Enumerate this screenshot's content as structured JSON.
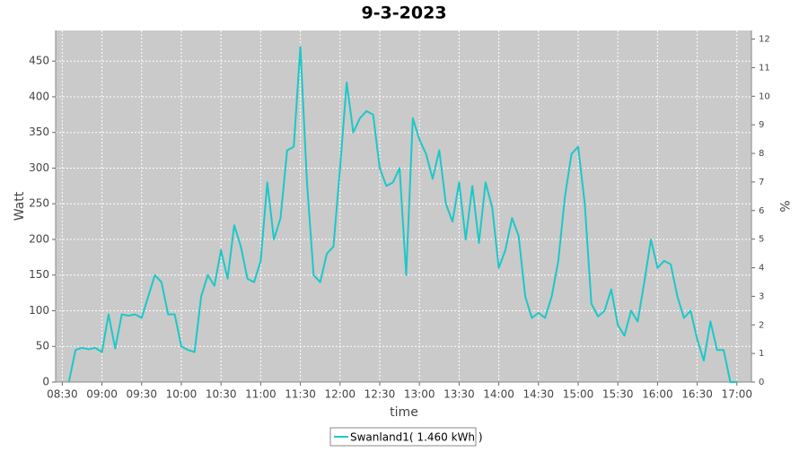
{
  "chart_data": {
    "type": "line",
    "title": "9-3-2023",
    "x_label": "time",
    "y_label": "Watt",
    "y2_label": "%",
    "x": [
      "08:35",
      "08:40",
      "08:45",
      "08:50",
      "08:55",
      "09:00",
      "09:05",
      "09:10",
      "09:15",
      "09:20",
      "09:25",
      "09:30",
      "09:35",
      "09:40",
      "09:45",
      "09:50",
      "09:55",
      "10:00",
      "10:05",
      "10:10",
      "10:15",
      "10:20",
      "10:25",
      "10:30",
      "10:35",
      "10:40",
      "10:45",
      "10:50",
      "10:55",
      "11:00",
      "11:05",
      "11:10",
      "11:15",
      "11:20",
      "11:25",
      "11:30",
      "11:35",
      "11:40",
      "11:45",
      "11:50",
      "11:55",
      "12:00",
      "12:05",
      "12:10",
      "12:15",
      "12:20",
      "12:25",
      "12:30",
      "12:35",
      "12:40",
      "12:45",
      "12:50",
      "12:55",
      "13:00",
      "13:05",
      "13:10",
      "13:15",
      "13:20",
      "13:25",
      "13:30",
      "13:35",
      "13:40",
      "13:45",
      "13:50",
      "13:55",
      "14:00",
      "14:05",
      "14:10",
      "14:15",
      "14:20",
      "14:25",
      "14:30",
      "14:35",
      "14:40",
      "14:45",
      "14:50",
      "14:55",
      "15:00",
      "15:05",
      "15:10",
      "15:15",
      "15:20",
      "15:25",
      "15:30",
      "15:35",
      "15:40",
      "15:45",
      "15:50",
      "15:55",
      "16:00",
      "16:05",
      "16:10",
      "16:15",
      "16:20",
      "16:25",
      "16:30",
      "16:35",
      "16:40",
      "16:45",
      "16:50",
      "16:55",
      "17:00"
    ],
    "series": [
      {
        "name": "Swanland1( 1.460 kWh )",
        "color": "#1cc8c8",
        "values": [
          0,
          45,
          48,
          46,
          48,
          42,
          95,
          47,
          95,
          93,
          95,
          90,
          120,
          150,
          140,
          95,
          95,
          50,
          45,
          42,
          120,
          150,
          135,
          185,
          145,
          220,
          190,
          145,
          140,
          170,
          280,
          200,
          230,
          325,
          330,
          470,
          280,
          150,
          140,
          180,
          190,
          300,
          420,
          350,
          370,
          380,
          375,
          300,
          275,
          280,
          300,
          150,
          370,
          340,
          320,
          285,
          325,
          250,
          225,
          280,
          200,
          275,
          195,
          280,
          245,
          160,
          185,
          230,
          205,
          120,
          90,
          97,
          90,
          120,
          170,
          260,
          320,
          330,
          250,
          110,
          92,
          100,
          130,
          80,
          65,
          100,
          85,
          140,
          200,
          160,
          170,
          165,
          120,
          90,
          100,
          60,
          30,
          85,
          45,
          45,
          0,
          0
        ]
      }
    ],
    "xlim": [
      "08:25",
      "17:11"
    ],
    "xticks": [
      "08:30",
      "09:00",
      "09:30",
      "10:00",
      "10:30",
      "11:00",
      "11:30",
      "12:00",
      "12:30",
      "13:00",
      "13:30",
      "14:00",
      "14:30",
      "15:00",
      "15:30",
      "16:00",
      "16:30",
      "17:00"
    ],
    "ylim": [
      0,
      493
    ],
    "yticks": [
      0,
      50,
      100,
      150,
      200,
      250,
      300,
      350,
      400,
      450
    ],
    "y2lim": [
      0,
      12.3
    ],
    "y2ticks": [
      0,
      1,
      2,
      3,
      4,
      5,
      6,
      7,
      8,
      9,
      10,
      11,
      12
    ],
    "grid": true
  }
}
